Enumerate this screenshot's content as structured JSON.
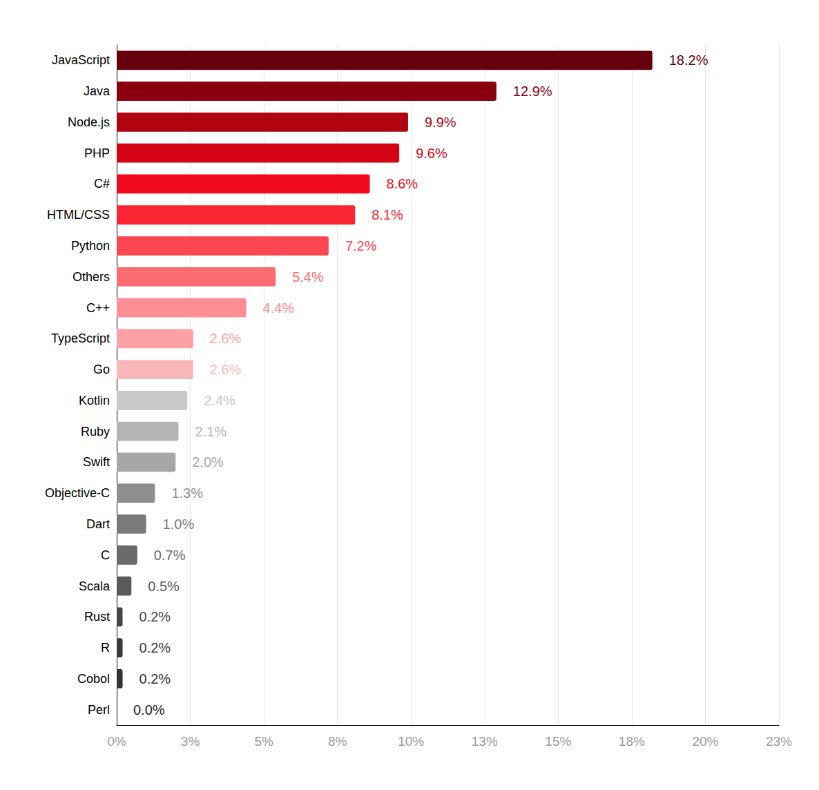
{
  "chart_data": {
    "type": "bar",
    "orientation": "horizontal",
    "categories": [
      "JavaScript",
      "Java",
      "Node.js",
      "PHP",
      "C#",
      "HTML/CSS",
      "Python",
      "Others",
      "C++",
      "TypeScript",
      "Go",
      "Kotlin",
      "Ruby",
      "Swift",
      "Objective-C",
      "Dart",
      "C",
      "Scala",
      "Rust",
      "R",
      "Cobol",
      "Perl"
    ],
    "values": [
      18.2,
      12.9,
      9.9,
      9.6,
      8.6,
      8.1,
      7.2,
      5.4,
      4.4,
      2.6,
      2.6,
      2.4,
      2.1,
      2.0,
      1.3,
      1.0,
      0.7,
      0.5,
      0.2,
      0.2,
      0.2,
      0.0
    ],
    "value_labels": [
      "18.2%",
      "12.9%",
      "9.9%",
      "9.6%",
      "8.6%",
      "8.1%",
      "7.2%",
      "5.4%",
      "4.4%",
      "2.6%",
      "2.6%",
      "2.4%",
      "2.1%",
      "2.0%",
      "1.3%",
      "1.0%",
      "0.7%",
      "0.5%",
      "0.2%",
      "0.2%",
      "0.2%",
      "0.0%"
    ],
    "colors": [
      "#67000d",
      "#8b000f",
      "#b00510",
      "#d40414",
      "#f00a1a",
      "#fb2432",
      "#fc4652",
      "#fd6b72",
      "#fd8e94",
      "#fda1a6",
      "#f7b6b8",
      "#c8c8c8",
      "#b4b4b4",
      "#a6a6a6",
      "#8e8e8e",
      "#7a7a7a",
      "#6a6a6a",
      "#5a5a5a",
      "#454545",
      "#3a3a3a",
      "#333333",
      "#222222"
    ],
    "xlim": [
      0,
      22.5
    ],
    "xticks": [
      {
        "value": 0,
        "label": "0%"
      },
      {
        "value": 2.5,
        "label": "3%"
      },
      {
        "value": 5,
        "label": "5%"
      },
      {
        "value": 7.5,
        "label": "8%"
      },
      {
        "value": 10,
        "label": "10%"
      },
      {
        "value": 12.5,
        "label": "13%"
      },
      {
        "value": 15,
        "label": "15%"
      },
      {
        "value": 17.5,
        "label": "18%"
      },
      {
        "value": 20,
        "label": "20%"
      },
      {
        "value": 22.5,
        "label": "23%"
      }
    ],
    "grid": true,
    "data_labels": true
  }
}
